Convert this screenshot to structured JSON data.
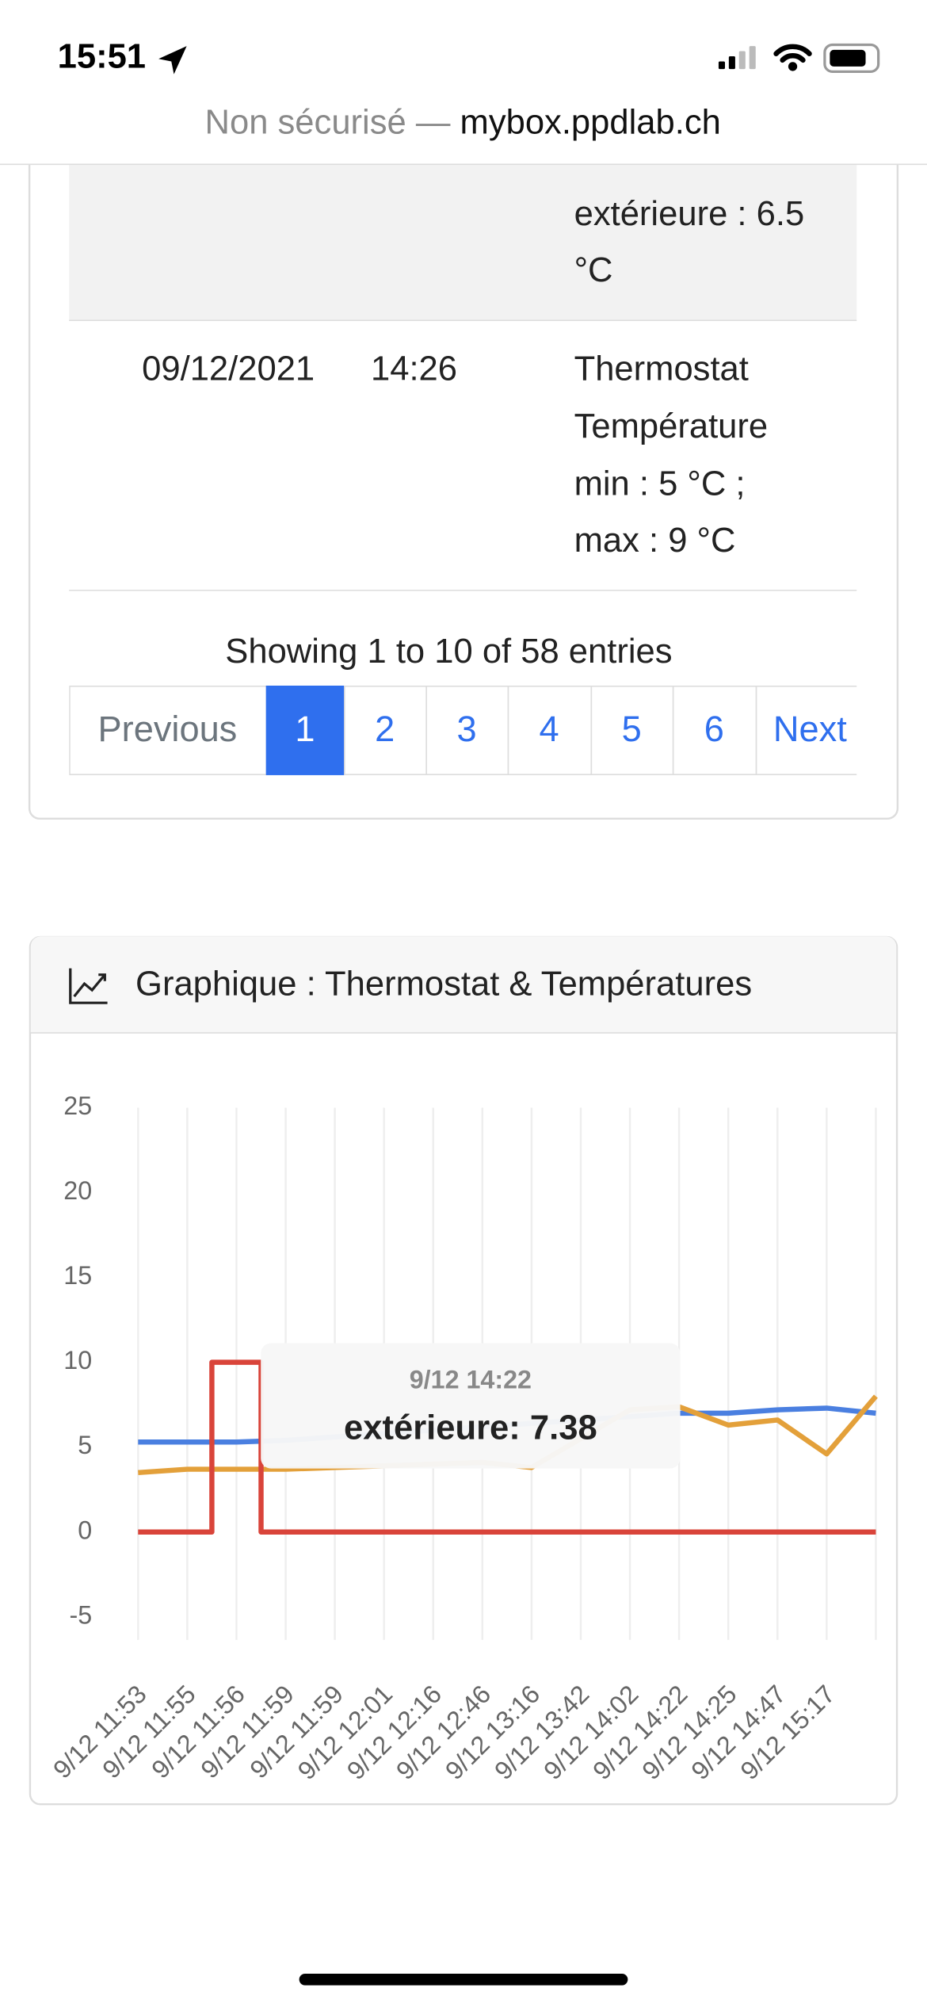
{
  "status_bar": {
    "time": "15:51"
  },
  "address_bar": {
    "prefix": "Non sécurisé —",
    "domain": "mybox.ppdlab.ch"
  },
  "table": {
    "rows": [
      {
        "date": "",
        "time": "",
        "lines": [
          "extérieure : 6.5",
          "°C"
        ]
      },
      {
        "date": "09/12/2021",
        "time": "14:26",
        "lines": [
          "Thermostat",
          "Température",
          "min : 5 °C ;",
          "max : 9 °C"
        ]
      }
    ]
  },
  "info": "Showing 1 to 10 of 58 entries",
  "pagination": [
    "Previous",
    "1",
    "2",
    "3",
    "4",
    "5",
    "6",
    "Next"
  ],
  "card": {
    "header": "Graphique : Thermostat & Températures"
  },
  "chart_data": {
    "type": "line",
    "categories": [
      "9/12 11:53",
      "9/12 11:55",
      "9/12 11:56",
      "9/12 11:59",
      "9/12 11:59",
      "9/12 12:01",
      "9/12 12:16",
      "9/12 12:46",
      "9/12 13:16",
      "9/12 13:42",
      "9/12 14:02",
      "9/12 14:22",
      "9/12 14:25",
      "9/12 14:47",
      "9/12 15:17",
      null
    ],
    "series": [
      {
        "color": "#4a7fe0",
        "values": [
          5.3,
          5.3,
          5.3,
          5.4,
          5.6,
          5.8,
          6.0,
          6.2,
          6.4,
          6.6,
          6.8,
          7.0,
          7.0,
          7.2,
          7.3,
          7.0
        ]
      },
      {
        "color": "#e3a03a",
        "values": [
          3.5,
          3.7,
          3.7,
          3.7,
          3.8,
          3.9,
          4.0,
          4.1,
          3.8,
          5.5,
          7.2,
          7.38,
          6.3,
          6.6,
          4.6,
          8.0
        ]
      },
      {
        "color": "#d9443a",
        "stepped": true,
        "values": [
          0,
          0,
          10,
          0,
          0,
          0,
          0,
          0,
          0,
          0,
          0,
          0,
          0,
          0,
          0,
          0
        ]
      }
    ],
    "ylim": [
      -5,
      25
    ],
    "yticks": [
      -5,
      0,
      5,
      10,
      15,
      20,
      25
    ],
    "grid": "x",
    "tooltip": {
      "title": "9/12 14:22",
      "body": "extérieure: 7.38"
    }
  }
}
